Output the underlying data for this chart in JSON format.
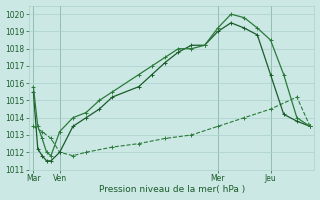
{
  "title": "Pression niveau de la mer( hPa )",
  "background_color": "#cce8e4",
  "grid_color": "#aad0cc",
  "line_color1": "#1a5c2a",
  "line_color2": "#2a7a3a",
  "line_color3": "#2a7a3a",
  "ylim": [
    1011,
    1020.5
  ],
  "yticks": [
    1011,
    1012,
    1013,
    1014,
    1015,
    1016,
    1017,
    1018,
    1019,
    1020
  ],
  "xtick_labels": [
    "Mar",
    "Ven",
    "Mer",
    "Jeu"
  ],
  "xtick_positions": [
    0,
    12,
    84,
    108
  ],
  "xlim": [
    -2,
    128
  ],
  "vline_positions": [
    0,
    12,
    84,
    108
  ],
  "line1_x": [
    0,
    2,
    4,
    6,
    8,
    12,
    18,
    24,
    30,
    36,
    48,
    54,
    60,
    66,
    72,
    78,
    84,
    90,
    96,
    102,
    108,
    114,
    120,
    126
  ],
  "line1_y": [
    1015.8,
    1013.5,
    1012.8,
    1012.0,
    1011.8,
    1013.2,
    1014.0,
    1014.3,
    1015.0,
    1015.5,
    1016.5,
    1017.0,
    1017.5,
    1018.0,
    1018.0,
    1018.2,
    1019.2,
    1020.0,
    1019.8,
    1019.2,
    1018.5,
    1016.5,
    1014.0,
    1013.5
  ],
  "line2_x": [
    0,
    2,
    4,
    6,
    8,
    12,
    18,
    24,
    30,
    36,
    48,
    54,
    60,
    66,
    72,
    78,
    84,
    90,
    96,
    102,
    108,
    114,
    120,
    126
  ],
  "line2_y": [
    1015.5,
    1012.2,
    1011.8,
    1011.5,
    1011.5,
    1012.0,
    1013.5,
    1014.0,
    1014.5,
    1015.2,
    1015.8,
    1016.5,
    1017.2,
    1017.8,
    1018.2,
    1018.2,
    1019.0,
    1019.5,
    1019.2,
    1018.8,
    1016.5,
    1014.2,
    1013.8,
    1013.5
  ],
  "line3_x": [
    0,
    4,
    8,
    12,
    18,
    24,
    36,
    48,
    60,
    72,
    84,
    96,
    108,
    120,
    126
  ],
  "line3_y": [
    1013.5,
    1013.2,
    1012.8,
    1012.0,
    1011.8,
    1012.0,
    1012.3,
    1012.5,
    1012.8,
    1013.0,
    1013.5,
    1014.0,
    1014.5,
    1015.2,
    1013.5
  ]
}
